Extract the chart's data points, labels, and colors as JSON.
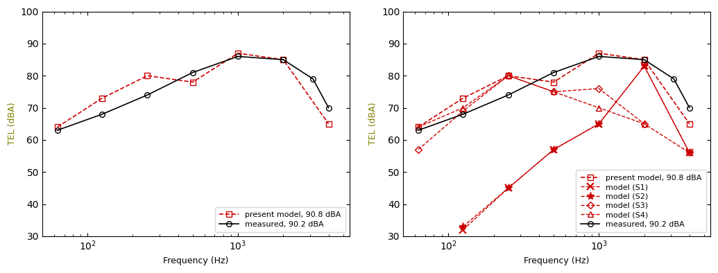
{
  "freqs_main": [
    63,
    125,
    250,
    500,
    1000,
    2000,
    4000
  ],
  "freqs_measured": [
    63,
    125,
    250,
    500,
    1000,
    2000,
    3150,
    4000
  ],
  "left_present": [
    64,
    73,
    80,
    78,
    87,
    85,
    65
  ],
  "left_measured": [
    63,
    68,
    74,
    81,
    86,
    85,
    79,
    70
  ],
  "right_present": [
    64,
    73,
    80,
    78,
    87,
    85,
    65
  ],
  "right_s1_freqs": [
    125,
    250,
    500,
    1000,
    2000,
    4000
  ],
  "right_s1": [
    32,
    45,
    57,
    65,
    83,
    56
  ],
  "right_s2_freqs": [
    125,
    250,
    500,
    1000,
    2000,
    4000
  ],
  "right_s2": [
    33,
    45,
    57,
    65,
    83,
    56
  ],
  "right_s3_freqs": [
    63,
    125,
    250,
    500,
    1000,
    2000,
    4000
  ],
  "right_s3": [
    57,
    69,
    80,
    75,
    76,
    65,
    56
  ],
  "right_s4_freqs": [
    63,
    125,
    250,
    500,
    1000,
    2000
  ],
  "right_s4": [
    64,
    70,
    80,
    75,
    70,
    65
  ],
  "right_measured": [
    63,
    68,
    74,
    81,
    86,
    85,
    79,
    70
  ],
  "xlim": [
    50,
    5500
  ],
  "ylim": [
    30,
    100
  ],
  "yticks": [
    30,
    40,
    50,
    60,
    70,
    80,
    90,
    100
  ],
  "xlabel": "Frequency (Hz)",
  "ylabel": "TEL (dBA)",
  "label_present": "present model, 90.8 dBA",
  "label_s1": "model (S1)",
  "label_s2": "model (S2)",
  "label_s3": "model (S3)",
  "label_s4": "model (S4)",
  "label_measured": "measured, 90.2 dBA",
  "red": "#cc0000",
  "black": "#000000",
  "olive": "#808000"
}
